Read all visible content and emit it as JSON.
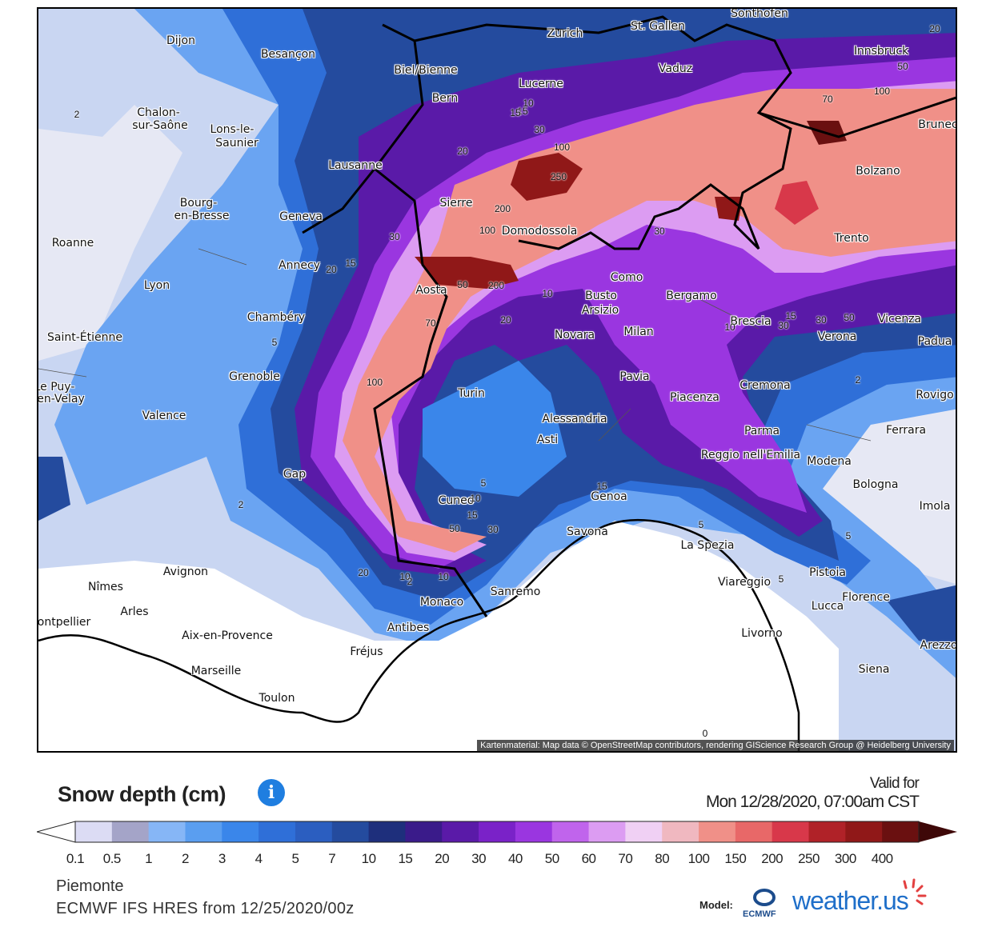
{
  "map": {
    "attribution": "Kartenmaterial: Map data © OpenStreetMap contributors, rendering GIScience Research Group @ Heidelberg University",
    "cities": [
      {
        "name": "Dijon"
      },
      {
        "name": "Besançon"
      },
      {
        "name": "Biel/Bienne"
      },
      {
        "name": "Zurich"
      },
      {
        "name": "St. Gallen"
      },
      {
        "name": "Sonthofen"
      },
      {
        "name": "Innsbruck"
      },
      {
        "name": "Vaduz"
      },
      {
        "name": "Lucerne"
      },
      {
        "name": "Bern"
      },
      {
        "name": "Chalon-"
      },
      {
        "name": "sur-Saône"
      },
      {
        "name": "Lons-le-"
      },
      {
        "name": "Saunier"
      },
      {
        "name": "Lausanne"
      },
      {
        "name": "Bourg-"
      },
      {
        "name": "en-Bresse"
      },
      {
        "name": "Geneva"
      },
      {
        "name": "Sierre"
      },
      {
        "name": "Domodossola"
      },
      {
        "name": "Bolzano"
      },
      {
        "name": "Brunec"
      },
      {
        "name": "Trento"
      },
      {
        "name": "Roanne"
      },
      {
        "name": "Annecy"
      },
      {
        "name": "Lyon"
      },
      {
        "name": "Aosta"
      },
      {
        "name": "Como"
      },
      {
        "name": "Busto"
      },
      {
        "name": "Arsizio"
      },
      {
        "name": "Bergamo"
      },
      {
        "name": "Chambéry"
      },
      {
        "name": "Brescia"
      },
      {
        "name": "Vicenza"
      },
      {
        "name": "Verona"
      },
      {
        "name": "Saint-Étienne"
      },
      {
        "name": "Novara"
      },
      {
        "name": "Milan"
      },
      {
        "name": "Padua"
      },
      {
        "name": "Grenoble"
      },
      {
        "name": "Pavia"
      },
      {
        "name": "Le Puy-"
      },
      {
        "name": "en-Velay"
      },
      {
        "name": "Turin"
      },
      {
        "name": "Piacenza"
      },
      {
        "name": "Cremona"
      },
      {
        "name": "Rovigo"
      },
      {
        "name": "Valence"
      },
      {
        "name": "Alessandria"
      },
      {
        "name": "Asti"
      },
      {
        "name": "Ferrara"
      },
      {
        "name": "Parma"
      },
      {
        "name": "Reggio nell'Emilia"
      },
      {
        "name": "Modena"
      },
      {
        "name": "Gap"
      },
      {
        "name": "Bologna"
      },
      {
        "name": "Cuneo"
      },
      {
        "name": "Genoa"
      },
      {
        "name": "Imola"
      },
      {
        "name": "Savona"
      },
      {
        "name": "La Spezia"
      },
      {
        "name": "Avignon"
      },
      {
        "name": "Pistoia"
      },
      {
        "name": "Viareggio"
      },
      {
        "name": "Nîmes"
      },
      {
        "name": "Lucca"
      },
      {
        "name": "Florence"
      },
      {
        "name": "Arles"
      },
      {
        "name": "Monaco"
      },
      {
        "name": "Sanremo"
      },
      {
        "name": "Montpellier"
      },
      {
        "name": "Antibes"
      },
      {
        "name": "Aix-en-Provence"
      },
      {
        "name": "Livorno"
      },
      {
        "name": "Arezzo"
      },
      {
        "name": "Fréjus"
      },
      {
        "name": "Marseille"
      },
      {
        "name": "Siena"
      },
      {
        "name": "Toulon"
      }
    ],
    "contour_labels": [
      "2",
      "15",
      "20",
      "50",
      "70",
      "100",
      "10",
      "15",
      "30",
      "100",
      "250",
      "20",
      "200",
      "30",
      "100",
      "30",
      "15",
      "20",
      "50",
      "200",
      "70",
      "10",
      "20",
      "100",
      "30",
      "50",
      "15",
      "30",
      "10",
      "2",
      "5",
      "5",
      "10",
      "15",
      "50",
      "30",
      "15",
      "5",
      "10",
      "2",
      "20",
      "10",
      "2",
      "5",
      "5",
      "0"
    ]
  },
  "legend": {
    "title": "Snow depth (cm)",
    "info_icon": "info-icon",
    "valid_label": "Valid for",
    "valid_time": "Mon 12/28/2020, 07:00am CST",
    "scale": [
      {
        "label": "0.1",
        "color": "#dcdcf4"
      },
      {
        "label": "0.5",
        "color": "#a4a4c8"
      },
      {
        "label": "1",
        "color": "#86b6f6"
      },
      {
        "label": "2",
        "color": "#5a9ef0"
      },
      {
        "label": "3",
        "color": "#3a86ea"
      },
      {
        "label": "4",
        "color": "#2f6fd8"
      },
      {
        "label": "5",
        "color": "#2b5ec0"
      },
      {
        "label": "7",
        "color": "#244b9e"
      },
      {
        "label": "10",
        "color": "#1e2f7c"
      },
      {
        "label": "15",
        "color": "#3a1b8a"
      },
      {
        "label": "20",
        "color": "#5a1aa8"
      },
      {
        "label": "30",
        "color": "#7a22c8"
      },
      {
        "label": "40",
        "color": "#9a36e0"
      },
      {
        "label": "50",
        "color": "#c064ec"
      },
      {
        "label": "60",
        "color": "#dc9cf2"
      },
      {
        "label": "70",
        "color": "#f0d0f4"
      },
      {
        "label": "80",
        "color": "#f0b8c0"
      },
      {
        "label": "100",
        "color": "#f09088"
      },
      {
        "label": "150",
        "color": "#e86868"
      },
      {
        "label": "200",
        "color": "#d8384a"
      },
      {
        "label": "250",
        "color": "#b02228"
      },
      {
        "label": "300",
        "color": "#901818"
      },
      {
        "label": "400",
        "color": "#6a1010"
      }
    ],
    "over_color": "#3e0808"
  },
  "footer": {
    "region": "Piemonte",
    "model_run": "ECMWF IFS HRES from 12/25/2020/00z",
    "model_label": "Model:",
    "ecmwf": "ECMWF",
    "brand": "weather.us"
  }
}
